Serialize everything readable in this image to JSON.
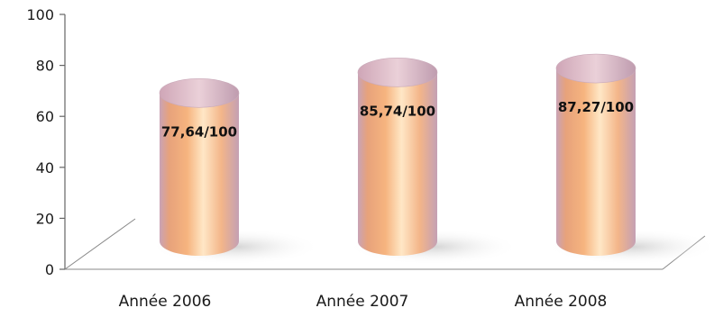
{
  "chart_data": {
    "type": "bar",
    "title": "",
    "xlabel": "",
    "ylabel": "",
    "categories": [
      "Année 2006",
      "Année 2007",
      "Année 2008"
    ],
    "values": [
      77.64,
      85.74,
      87.27
    ],
    "data_labels": [
      "77,64/100",
      "85,74/100",
      "87,27/100"
    ],
    "ylim": [
      0,
      100
    ],
    "yticks": [
      0,
      20,
      40,
      60,
      80,
      100
    ],
    "ytick_labels": [
      "0",
      "20",
      "40",
      "60",
      "80",
      "100"
    ],
    "grid": false,
    "legend": "none",
    "style": "3d-cylinder",
    "colors": {
      "bar_core": "#f6b47f",
      "bar_highlight": "#ffe7c6",
      "bar_shade": "#c9a3b6",
      "bar_top": "#d9b4c4",
      "axis": "#666666"
    }
  }
}
